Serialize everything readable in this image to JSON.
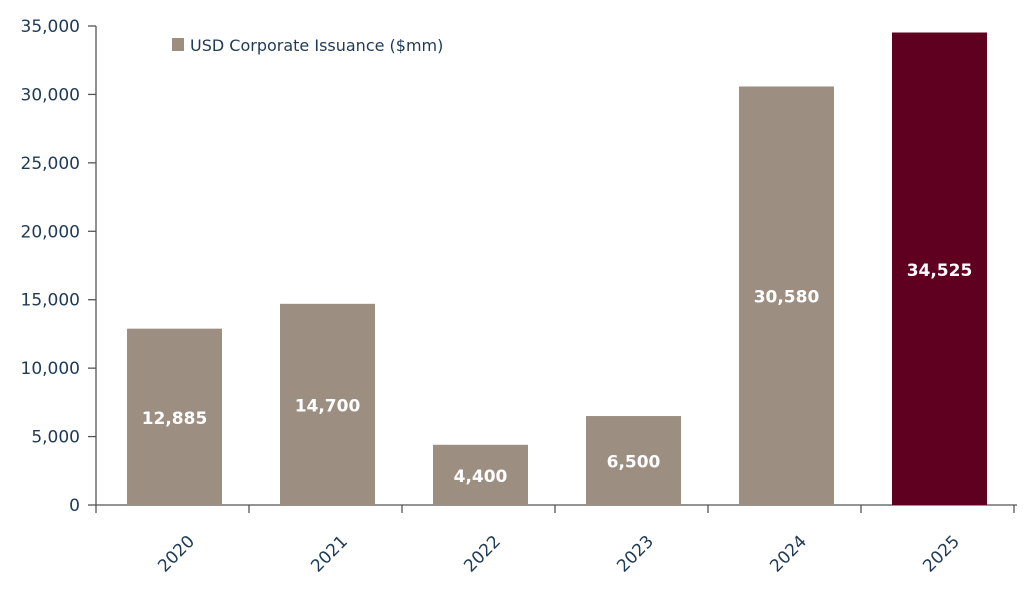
{
  "chart_data": {
    "type": "bar",
    "title": "",
    "xlabel": "",
    "ylabel": "",
    "categories": [
      "2020",
      "2021",
      "2022",
      "2023",
      "2024",
      "2025"
    ],
    "series": [
      {
        "name": "USD Corporate Issuance ($mm)",
        "values": [
          12885,
          14700,
          4400,
          6500,
          30580,
          34525
        ],
        "data_labels": [
          "12,885",
          "14,700",
          "4,400",
          "6,500",
          "30,580",
          "34,525"
        ]
      }
    ],
    "ylim": [
      0,
      35000
    ],
    "yticks": [
      0,
      5000,
      10000,
      15000,
      20000,
      25000,
      30000,
      35000
    ],
    "ytick_labels": [
      "0",
      "5,000",
      "10,000",
      "15,000",
      "20,000",
      "25,000",
      "30,000",
      "35,000"
    ],
    "grid": false,
    "legend": {
      "position": "top-left",
      "entries": [
        "USD Corporate Issuance ($mm)"
      ]
    },
    "colors": {
      "bar": "#9c8e80",
      "highlight": "#600020",
      "axis": "#555555",
      "text": "#1f3a55",
      "label": "#ffffff"
    },
    "highlight_category": "2025"
  }
}
